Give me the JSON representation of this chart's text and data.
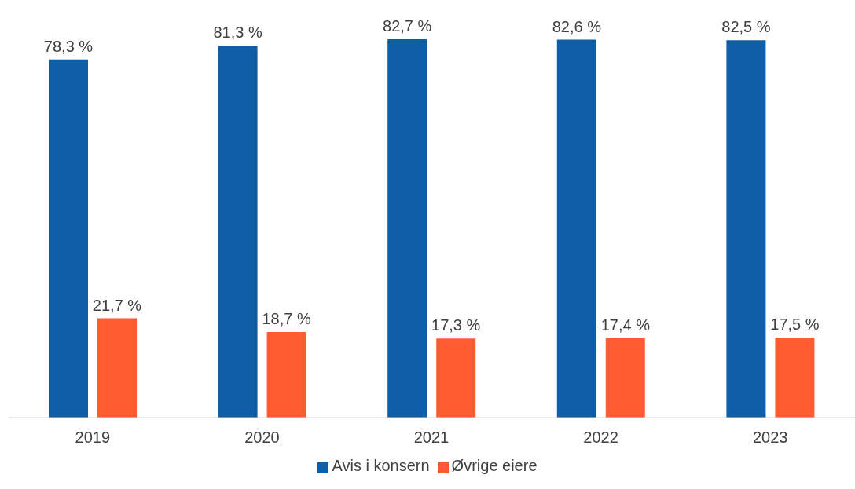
{
  "chart_data": {
    "type": "bar",
    "categories": [
      "2019",
      "2020",
      "2021",
      "2022",
      "2023"
    ],
    "series": [
      {
        "name": "Avis i konsern",
        "color": "#0e5ea8",
        "values": [
          78.3,
          81.3,
          82.7,
          82.6,
          82.5
        ],
        "value_labels": [
          "78,3 %",
          "81,3 %",
          "82,7 %",
          "82,6 %",
          "82,5 %"
        ]
      },
      {
        "name": "Øvrige eiere",
        "color": "#ff5b33",
        "values": [
          21.7,
          18.7,
          17.3,
          17.4,
          17.5
        ],
        "value_labels": [
          "21,7 %",
          "18,7 %",
          "17,3 %",
          "17,4 %",
          "17,5 %"
        ]
      }
    ],
    "legend": "bottom",
    "grid": false
  }
}
